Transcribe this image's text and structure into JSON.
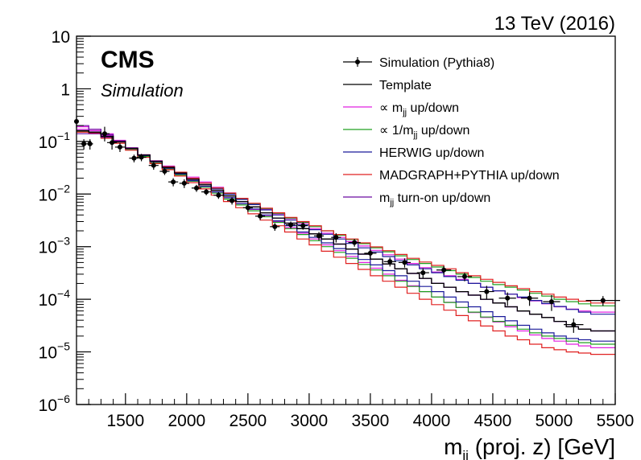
{
  "energy_label": "13 TeV (2016)",
  "cms_label": "CMS",
  "simulation_label": "Simulation",
  "chart_data": {
    "type": "line",
    "xlabel": "m",
    "xlabel_sub": "jj",
    "xlabel_rest": " (proj. z) [GeV]",
    "x_range": [
      1100,
      5500
    ],
    "y_range": [
      1e-06,
      10
    ],
    "y_log": true,
    "x_ticks": [
      1500,
      2000,
      2500,
      3000,
      3500,
      4000,
      4500,
      5000,
      5500
    ],
    "y_ticks": [
      {
        "value": 10,
        "base": "10",
        "exp": ""
      },
      {
        "value": 1,
        "base": "1",
        "exp": ""
      },
      {
        "value": 0.1,
        "base": "10",
        "exp": "−1"
      },
      {
        "value": 0.01,
        "base": "10",
        "exp": "−2"
      },
      {
        "value": 0.001,
        "base": "10",
        "exp": "−3"
      },
      {
        "value": 0.0001,
        "base": "10",
        "exp": "−4"
      },
      {
        "value": 1e-05,
        "base": "10",
        "exp": "−5"
      },
      {
        "value": 1e-06,
        "base": "10",
        "exp": "−6"
      }
    ],
    "legend_position": "top-right",
    "legend": [
      {
        "key": "points",
        "marker": "point",
        "color": "#000000",
        "pre": "Simulation (Pythia8)",
        "sub": "",
        "post": ""
      },
      {
        "key": "template",
        "marker": "line",
        "color": "#000000",
        "pre": "Template",
        "sub": "",
        "post": ""
      },
      {
        "key": "mjj_updown",
        "marker": "line",
        "color": "#e020e0",
        "pre": "∝ m",
        "sub": "jj",
        "post": " up/down"
      },
      {
        "key": "inv_mjj_updown",
        "marker": "line",
        "color": "#20a020",
        "pre": "∝ 1/m",
        "sub": "jj",
        "post": " up/down"
      },
      {
        "key": "herwig",
        "marker": "line",
        "color": "#1a1a9a",
        "pre": "HERWIG up/down",
        "sub": "",
        "post": ""
      },
      {
        "key": "madgraph",
        "marker": "line",
        "color": "#e02020",
        "pre": "MADGRAPH+PYTHIA up/down",
        "sub": "",
        "post": ""
      },
      {
        "key": "turnon",
        "marker": "line",
        "color": "#6a0aa0",
        "pre": "m",
        "sub": "jj",
        "post": " turn-on up/down"
      }
    ],
    "bin_edges": [
      1100,
      1200,
      1300,
      1400,
      1500,
      1600,
      1700,
      1800,
      1900,
      2000,
      2100,
      2200,
      2300,
      2400,
      2500,
      2600,
      2700,
      2800,
      2900,
      3000,
      3100,
      3200,
      3300,
      3400,
      3500,
      3600,
      3700,
      3800,
      3900,
      4000,
      4100,
      4200,
      4300,
      4400,
      4500,
      4600,
      4700,
      4800,
      4900,
      5000,
      5100,
      5200,
      5300,
      5400,
      5500
    ],
    "template": [
      0.16,
      0.15,
      0.125,
      0.1,
      0.074,
      0.055,
      0.042,
      0.032,
      0.025,
      0.019,
      0.015,
      0.0118,
      0.0092,
      0.0072,
      0.0057,
      0.0044,
      0.0035,
      0.0028,
      0.0022,
      0.00175,
      0.0014,
      0.00112,
      0.0009,
      0.00072,
      0.00058,
      0.00047,
      0.00038,
      0.00031,
      0.00025,
      0.0002,
      0.00017,
      0.00014,
      0.00012,
      0.0001,
      8.5e-05,
      7.2e-05,
      6e-05,
      5.2e-05,
      4.5e-05,
      3.8e-05,
      3e-05,
      2.7e-05,
      2.5e-05,
      2.5e-05
    ],
    "series": [
      {
        "name": "∝ mjj up",
        "color": "#e020e0",
        "values": [
          0.19,
          0.17,
          0.14,
          0.105,
          0.076,
          0.056,
          0.043,
          0.034,
          0.026,
          0.021,
          0.017,
          0.0135,
          0.0105,
          0.0083,
          0.0066,
          0.0052,
          0.0042,
          0.0034,
          0.0028,
          0.0022,
          0.0018,
          0.0015,
          0.00125,
          0.00103,
          0.00085,
          0.0007,
          0.00058,
          0.00048,
          0.0004,
          0.00033,
          0.00028,
          0.00024,
          0.0002,
          0.00017,
          0.000145,
          0.000125,
          0.000107,
          9.3e-05,
          8.2e-05,
          7.2e-05,
          6.5e-05,
          6e-05,
          5.7e-05,
          5.7e-05
        ]
      },
      {
        "name": "∝ mjj down",
        "color": "#e020e0",
        "values": [
          0.17,
          0.16,
          0.13,
          0.1,
          0.072,
          0.053,
          0.04,
          0.031,
          0.0235,
          0.018,
          0.014,
          0.011,
          0.0085,
          0.0066,
          0.0051,
          0.0039,
          0.003,
          0.0023,
          0.0018,
          0.0014,
          0.00108,
          0.00084,
          0.00065,
          0.0005,
          0.00039,
          0.0003,
          0.00023,
          0.00018,
          0.00014,
          0.00011,
          8.8e-05,
          7e-05,
          5.6e-05,
          4.5e-05,
          3.7e-05,
          3e-05,
          2.5e-05,
          2.1e-05,
          1.8e-05,
          1.6e-05,
          1.4e-05,
          1.3e-05,
          1.2e-05,
          1.2e-05
        ]
      },
      {
        "name": "∝ 1/mjj up",
        "color": "#20a020",
        "values": [
          0.15,
          0.145,
          0.12,
          0.097,
          0.072,
          0.054,
          0.041,
          0.032,
          0.025,
          0.02,
          0.016,
          0.013,
          0.0103,
          0.0082,
          0.0066,
          0.0053,
          0.0043,
          0.0035,
          0.0029,
          0.0024,
          0.002,
          0.00165,
          0.00137,
          0.00114,
          0.00095,
          0.0008,
          0.00067,
          0.00057,
          0.00048,
          0.00041,
          0.00035,
          0.0003,
          0.00026,
          0.00022,
          0.00019,
          0.00017,
          0.00015,
          0.00013,
          0.000115,
          0.0001,
          9e-05,
          8.2e-05,
          7.5e-05,
          7.5e-05
        ]
      },
      {
        "name": "∝ 1/mjj down",
        "color": "#20a020",
        "values": [
          0.155,
          0.145,
          0.12,
          0.095,
          0.07,
          0.052,
          0.039,
          0.03,
          0.023,
          0.0175,
          0.0135,
          0.0104,
          0.008,
          0.0062,
          0.0048,
          0.0037,
          0.0029,
          0.0022,
          0.0017,
          0.0013,
          0.001,
          0.00078,
          0.0006,
          0.00046,
          0.00036,
          0.00028,
          0.00022,
          0.000175,
          0.00014,
          0.00011,
          8.7e-05,
          7e-05,
          5.7e-05,
          4.6e-05,
          3.8e-05,
          3.2e-05,
          2.7e-05,
          2.3e-05,
          2e-05,
          1.8e-05,
          1.6e-05,
          1.5e-05,
          1.4e-05,
          1.4e-05
        ]
      },
      {
        "name": "HERWIG up",
        "color": "#1a1a9a",
        "values": [
          0.16,
          0.15,
          0.125,
          0.1,
          0.074,
          0.055,
          0.042,
          0.033,
          0.026,
          0.02,
          0.016,
          0.0125,
          0.0099,
          0.0079,
          0.0063,
          0.005,
          0.004,
          0.0032,
          0.0026,
          0.0021,
          0.00172,
          0.0014,
          0.00115,
          0.00095,
          0.00079,
          0.00065,
          0.00054,
          0.00045,
          0.00038,
          0.00032,
          0.00027,
          0.00023,
          0.0002,
          0.00017,
          0.000145,
          0.000125,
          0.00011,
          9.5e-05,
          8.3e-05,
          7.3e-05,
          6.4e-05,
          5.7e-05,
          5.2e-05,
          5.2e-05
        ]
      },
      {
        "name": "HERWIG down",
        "color": "#1a1a9a",
        "values": [
          0.16,
          0.15,
          0.125,
          0.1,
          0.073,
          0.054,
          0.041,
          0.031,
          0.024,
          0.018,
          0.014,
          0.011,
          0.0085,
          0.0066,
          0.0052,
          0.004,
          0.0031,
          0.0025,
          0.0019,
          0.0015,
          0.00118,
          0.00092,
          0.00073,
          0.00057,
          0.00045,
          0.00035,
          0.00028,
          0.00022,
          0.000175,
          0.00014,
          0.00011,
          8.9e-05,
          7.2e-05,
          5.8e-05,
          4.7e-05,
          3.9e-05,
          3.2e-05,
          2.7e-05,
          2.3e-05,
          2e-05,
          1.8e-05,
          1.7e-05,
          1.6e-05,
          1.6e-05
        ]
      },
      {
        "name": "MADGRAPH+PYTHIA up",
        "color": "#e02020",
        "values": [
          0.15,
          0.145,
          0.12,
          0.097,
          0.073,
          0.055,
          0.042,
          0.033,
          0.026,
          0.02,
          0.0162,
          0.013,
          0.0104,
          0.0083,
          0.0067,
          0.0054,
          0.0044,
          0.0036,
          0.003,
          0.0025,
          0.002,
          0.0017,
          0.0014,
          0.00118,
          0.00099,
          0.00084,
          0.00071,
          0.0006,
          0.00051,
          0.00044,
          0.00038,
          0.00032,
          0.00028,
          0.00024,
          0.00021,
          0.00018,
          0.00016,
          0.00014,
          0.000125,
          0.00011,
          0.0001,
          9.2e-05,
          8.5e-05,
          8.5e-05
        ]
      },
      {
        "name": "MADGRAPH+PYTHIA down",
        "color": "#e02020",
        "values": [
          0.15,
          0.14,
          0.115,
          0.092,
          0.068,
          0.05,
          0.038,
          0.029,
          0.022,
          0.0165,
          0.0125,
          0.0095,
          0.0072,
          0.0055,
          0.0042,
          0.0032,
          0.0025,
          0.0019,
          0.0014,
          0.00108,
          0.00082,
          0.00063,
          0.00048,
          0.00037,
          0.00028,
          0.00022,
          0.00017,
          0.00013,
          0.0001,
          7.9e-05,
          6.2e-05,
          4.9e-05,
          3.9e-05,
          3.1e-05,
          2.5e-05,
          2e-05,
          1.7e-05,
          1.4e-05,
          1.2e-05,
          1.1e-05,
          1e-05,
          9.5e-06,
          9e-06,
          9e-06
        ]
      },
      {
        "name": "mjj turn-on up",
        "color": "#6a0aa0",
        "values": [
          0.2,
          0.17,
          0.135,
          0.102,
          0.075,
          0.055,
          0.042,
          0.032,
          0.025,
          0.019,
          0.015,
          0.0118,
          0.0092,
          0.0072,
          0.0057,
          0.0044,
          0.0035,
          0.0028,
          0.0022,
          0.00175,
          0.0014,
          0.00112,
          0.0009,
          0.00072,
          0.00058,
          0.00047,
          0.00038,
          0.00031,
          0.00025,
          0.0002,
          0.00017,
          0.00014,
          0.00012,
          0.0001,
          8.5e-05,
          7.2e-05,
          6e-05,
          5.2e-05,
          4.5e-05,
          3.8e-05,
          3e-05,
          2.7e-05,
          2.5e-05,
          2.5e-05
        ]
      },
      {
        "name": "mjj turn-on down",
        "color": "#6a0aa0",
        "values": [
          0.14,
          0.14,
          0.12,
          0.098,
          0.073,
          0.055,
          0.042,
          0.032,
          0.025,
          0.019,
          0.015,
          0.0118,
          0.0092,
          0.0072,
          0.0057,
          0.0044,
          0.0035,
          0.0028,
          0.0022,
          0.00175,
          0.0014,
          0.00112,
          0.0009,
          0.00072,
          0.00058,
          0.00047,
          0.00038,
          0.00031,
          0.00025,
          0.0002,
          0.00017,
          0.00014,
          0.00012,
          0.0001,
          8.5e-05,
          7.2e-05,
          6e-05,
          5.2e-05,
          4.5e-05,
          3.8e-05,
          3e-05,
          2.7e-05,
          2.5e-05,
          2.5e-05
        ]
      }
    ],
    "points": [
      {
        "x": 1100,
        "x_err": 10,
        "y": 0.24,
        "y_err": [
          0.06,
          0.05
        ]
      },
      {
        "x": 1160,
        "x_err": 25,
        "y": 0.09,
        "y_err": [
          0.02,
          0.02
        ]
      },
      {
        "x": 1210,
        "x_err": 25,
        "y": 0.09,
        "y_err": [
          0.02,
          0.02
        ]
      },
      {
        "x": 1330,
        "x_err": 40,
        "y": 0.14,
        "y_err": [
          0.04,
          0.05
        ]
      },
      {
        "x": 1390,
        "x_err": 40,
        "y": 0.095,
        "y_err": [
          0.025,
          0.03
        ]
      },
      {
        "x": 1455,
        "x_err": 40,
        "y": 0.078,
        "y_err": [
          0.015,
          0.015
        ]
      },
      {
        "x": 1570,
        "x_err": 40,
        "y": 0.048,
        "y_err": [
          0.008,
          0.008
        ]
      },
      {
        "x": 1630,
        "x_err": 40,
        "y": 0.05,
        "y_err": [
          0.008,
          0.008
        ]
      },
      {
        "x": 1730,
        "x_err": 40,
        "y": 0.035,
        "y_err": [
          0.006,
          0.006
        ]
      },
      {
        "x": 1820,
        "x_err": 40,
        "y": 0.027,
        "y_err": [
          0.004,
          0.004
        ]
      },
      {
        "x": 1890,
        "x_err": 40,
        "y": 0.017,
        "y_err": [
          0.003,
          0.003
        ]
      },
      {
        "x": 1980,
        "x_err": 40,
        "y": 0.016,
        "y_err": [
          0.003,
          0.003
        ]
      },
      {
        "x": 2080,
        "x_err": 40,
        "y": 0.013,
        "y_err": [
          0.002,
          0.002
        ]
      },
      {
        "x": 2160,
        "x_err": 40,
        "y": 0.011,
        "y_err": [
          0.0015,
          0.0015
        ]
      },
      {
        "x": 2260,
        "x_err": 40,
        "y": 0.0095,
        "y_err": [
          0.0014,
          0.0014
        ]
      },
      {
        "x": 2370,
        "x_err": 40,
        "y": 0.0075,
        "y_err": [
          0.0012,
          0.0012
        ]
      },
      {
        "x": 2500,
        "x_err": 40,
        "y": 0.0055,
        "y_err": [
          0.0009,
          0.0009
        ]
      },
      {
        "x": 2600,
        "x_err": 40,
        "y": 0.0038,
        "y_err": [
          0.0006,
          0.0006
        ]
      },
      {
        "x": 2720,
        "x_err": 40,
        "y": 0.0024,
        "y_err": [
          0.0004,
          0.0004
        ]
      },
      {
        "x": 2850,
        "x_err": 40,
        "y": 0.0026,
        "y_err": [
          0.0004,
          0.0004
        ]
      },
      {
        "x": 2950,
        "x_err": 40,
        "y": 0.0025,
        "y_err": [
          0.0004,
          0.0004
        ]
      },
      {
        "x": 3080,
        "x_err": 40,
        "y": 0.0016,
        "y_err": [
          0.0003,
          0.0003
        ]
      },
      {
        "x": 3220,
        "x_err": 40,
        "y": 0.0015,
        "y_err": [
          0.0003,
          0.0003
        ]
      },
      {
        "x": 3370,
        "x_err": 50,
        "y": 0.0012,
        "y_err": [
          0.0002,
          0.0002
        ]
      },
      {
        "x": 3500,
        "x_err": 50,
        "y": 0.00075,
        "y_err": [
          0.00015,
          0.00015
        ]
      },
      {
        "x": 3660,
        "x_err": 50,
        "y": 0.00052,
        "y_err": [
          0.0001,
          0.0001
        ]
      },
      {
        "x": 3780,
        "x_err": 50,
        "y": 0.0005,
        "y_err": [
          0.0001,
          0.0001
        ]
      },
      {
        "x": 3930,
        "x_err": 50,
        "y": 0.00032,
        "y_err": [
          7e-05,
          7e-05
        ]
      },
      {
        "x": 4100,
        "x_err": 60,
        "y": 0.00036,
        "y_err": [
          7e-05,
          7e-05
        ]
      },
      {
        "x": 4270,
        "x_err": 60,
        "y": 0.00027,
        "y_err": [
          5e-05,
          5e-05
        ]
      },
      {
        "x": 4450,
        "x_err": 60,
        "y": 0.00014,
        "y_err": [
          4e-05,
          4e-05
        ]
      },
      {
        "x": 4620,
        "x_err": 70,
        "y": 0.000105,
        "y_err": [
          3e-05,
          3e-05
        ]
      },
      {
        "x": 4800,
        "x_err": 70,
        "y": 0.000105,
        "y_err": [
          3e-05,
          3e-05
        ]
      },
      {
        "x": 4980,
        "x_err": 70,
        "y": 9e-05,
        "y_err": [
          3e-05,
          3e-05
        ]
      },
      {
        "x": 5160,
        "x_err": 80,
        "y": 3.3e-05,
        "y_err": [
          1e-05,
          1e-05
        ]
      },
      {
        "x": 5400,
        "x_err": 140,
        "y": 9.5e-05,
        "y_err": [
          2e-05,
          2e-05
        ]
      }
    ]
  }
}
